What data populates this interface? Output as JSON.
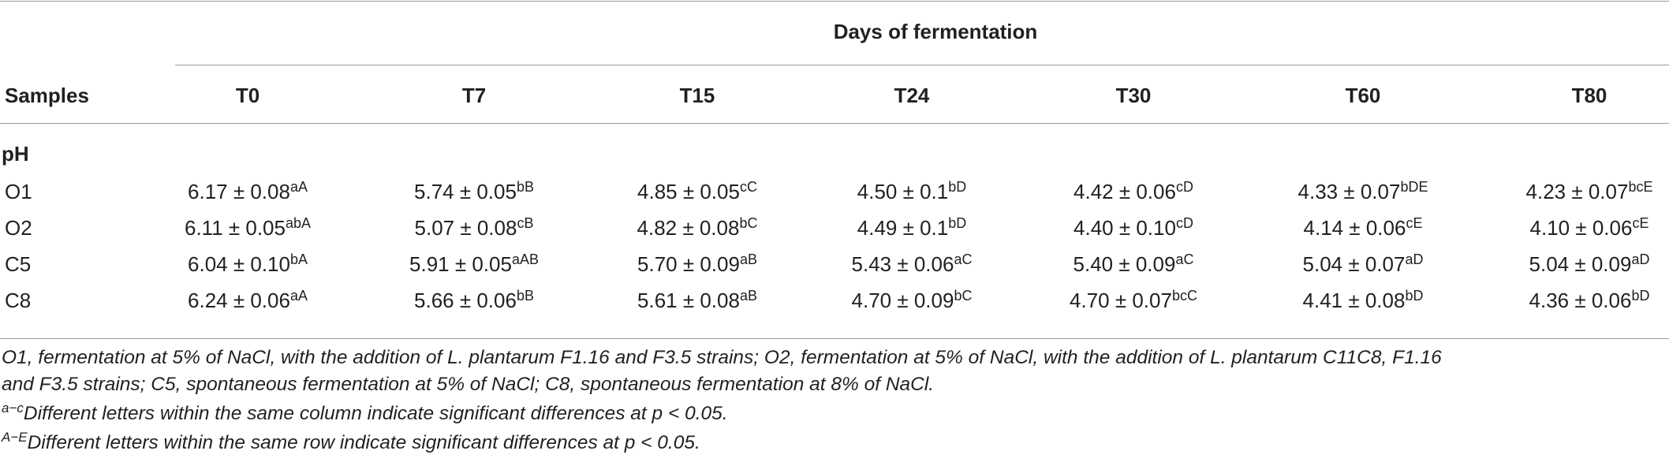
{
  "table": {
    "group_header": "Days of fermentation",
    "row_header": "Samples",
    "columns": [
      "T0",
      "T7",
      "T15",
      "T24",
      "T30",
      "T60",
      "T80"
    ],
    "section_label": "pH",
    "rows": [
      {
        "sample": "O1",
        "cells": [
          {
            "v": "6.17 ± 0.08",
            "s": "aA"
          },
          {
            "v": "5.74 ± 0.05",
            "s": "bB"
          },
          {
            "v": "4.85 ± 0.05",
            "s": "cC"
          },
          {
            "v": "4.50 ± 0.1",
            "s": "bD"
          },
          {
            "v": "4.42 ± 0.06",
            "s": "cD"
          },
          {
            "v": "4.33 ± 0.07",
            "s": "bDE"
          },
          {
            "v": "4.23 ± 0.07",
            "s": "bcE"
          }
        ]
      },
      {
        "sample": "O2",
        "cells": [
          {
            "v": "6.11 ± 0.05",
            "s": "abA"
          },
          {
            "v": "5.07 ± 0.08",
            "s": "cB"
          },
          {
            "v": "4.82 ± 0.08",
            "s": "bC"
          },
          {
            "v": "4.49 ± 0.1",
            "s": "bD"
          },
          {
            "v": "4.40 ± 0.10",
            "s": "cD"
          },
          {
            "v": "4.14 ± 0.06",
            "s": "cE"
          },
          {
            "v": "4.10 ± 0.06",
            "s": "cE"
          }
        ]
      },
      {
        "sample": "C5",
        "cells": [
          {
            "v": "6.04 ± 0.10",
            "s": "bA"
          },
          {
            "v": "5.91 ± 0.05",
            "s": "aAB"
          },
          {
            "v": "5.70 ± 0.09",
            "s": "aB"
          },
          {
            "v": "5.43 ± 0.06",
            "s": "aC"
          },
          {
            "v": "5.40 ± 0.09",
            "s": "aC"
          },
          {
            "v": "5.04 ± 0.07",
            "s": "aD"
          },
          {
            "v": "5.04 ± 0.09",
            "s": "aD"
          }
        ]
      },
      {
        "sample": "C8",
        "cells": [
          {
            "v": "6.24 ± 0.06",
            "s": "aA"
          },
          {
            "v": "5.66 ± 0.06",
            "s": "bB"
          },
          {
            "v": "5.61 ± 0.08",
            "s": "aB"
          },
          {
            "v": "4.70 ± 0.09",
            "s": "bC"
          },
          {
            "v": "4.70 ± 0.07",
            "s": "bcC"
          },
          {
            "v": "4.41 ± 0.08",
            "s": "bD"
          },
          {
            "v": "4.36 ± 0.06",
            "s": "bD"
          }
        ]
      }
    ]
  },
  "footnotes": {
    "line1": "O1, fermentation at 5% of NaCl, with the addition of L. plantarum F1.16 and F3.5 strains; O2, fermentation at 5% of NaCl, with the addition of L. plantarum C11C8, F1.16",
    "line2": "and F3.5 strains; C5, spontaneous fermentation at 5% of NaCl; C8, spontaneous fermentation at 8% of NaCl.",
    "note_a_marker": "a−c",
    "note_a_text": "Different letters within the same column indicate significant differences at p < 0.05.",
    "note_b_marker": "A−E",
    "note_b_text": "Different letters within the same row indicate significant differences at p < 0.05."
  }
}
